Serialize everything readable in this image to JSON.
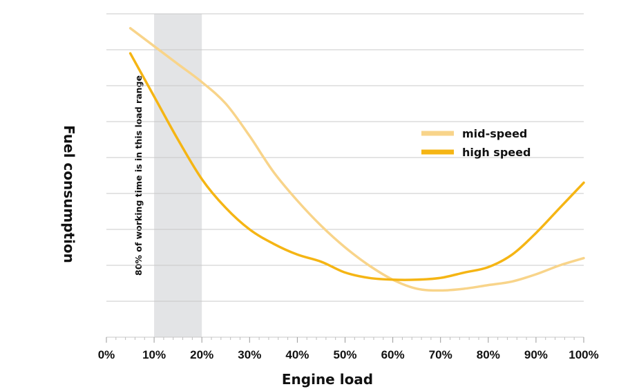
{
  "chart_data": {
    "type": "line",
    "title": "",
    "xlabel": "Engine load",
    "ylabel": "Fuel consumption",
    "xlim": [
      0,
      100
    ],
    "ylim": [
      0,
      9
    ],
    "x_tick_labels": [
      "0%",
      "10%",
      "20%",
      "30%",
      "40%",
      "50%",
      "60%",
      "70%",
      "80%",
      "90%",
      "100%"
    ],
    "y_ticks_labeled": false,
    "grid": "horizontal",
    "legend": "right",
    "highlight_band": {
      "from": 10,
      "to": 20,
      "label": "80% of working time is in this load range",
      "color": "#e3e4e6"
    },
    "series": [
      {
        "name": "mid-speed",
        "color": "#f8d48a",
        "x": [
          5,
          10,
          15,
          20,
          25,
          30,
          35,
          40,
          45,
          50,
          55,
          60,
          65,
          70,
          75,
          80,
          85,
          90,
          95,
          100
        ],
        "y": [
          8.6,
          8.1,
          7.6,
          7.1,
          6.5,
          5.6,
          4.6,
          3.8,
          3.1,
          2.5,
          2.0,
          1.6,
          1.35,
          1.3,
          1.35,
          1.45,
          1.55,
          1.75,
          2.0,
          2.2
        ]
      },
      {
        "name": "high speed",
        "color": "#f5b514",
        "x": [
          5,
          10,
          15,
          20,
          25,
          30,
          35,
          40,
          45,
          50,
          55,
          60,
          65,
          70,
          75,
          80,
          85,
          90,
          95,
          100
        ],
        "y": [
          7.9,
          6.7,
          5.5,
          4.4,
          3.6,
          3.0,
          2.6,
          2.3,
          2.1,
          1.8,
          1.65,
          1.6,
          1.6,
          1.65,
          1.8,
          1.95,
          2.3,
          2.9,
          3.6,
          4.3
        ]
      }
    ]
  }
}
